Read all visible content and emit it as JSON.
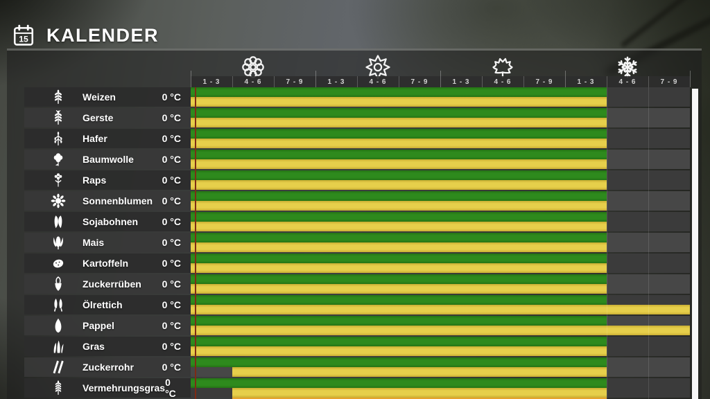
{
  "header": {
    "title": "KALENDER",
    "icon": "calendar-icon",
    "calendar_icon_day": "15"
  },
  "seasons": [
    {
      "icon": "flower-icon"
    },
    {
      "icon": "sun-icon"
    },
    {
      "icon": "maple-leaf-icon"
    },
    {
      "icon": "snowflake-icon"
    }
  ],
  "month_periods": [
    "1 - 3",
    "4 - 6",
    "7 - 9",
    "1 - 3",
    "4 - 6",
    "7 - 9",
    "1 - 3",
    "4 - 6",
    "7 - 9",
    "1 - 3",
    "4 - 6",
    "7 - 9"
  ],
  "crops": [
    {
      "name": "Weizen",
      "temperature": "0 °C",
      "icon": "wheat-icon",
      "green_cells": [
        0,
        10
      ],
      "yellow_cells": [
        0,
        10
      ]
    },
    {
      "name": "Gerste",
      "temperature": "0 °C",
      "icon": "barley-icon",
      "green_cells": [
        0,
        10
      ],
      "yellow_cells": [
        0,
        10
      ]
    },
    {
      "name": "Hafer",
      "temperature": "0 °C",
      "icon": "oat-icon",
      "green_cells": [
        0,
        10
      ],
      "yellow_cells": [
        0,
        10
      ]
    },
    {
      "name": "Baumwolle",
      "temperature": "0 °C",
      "icon": "cotton-icon",
      "green_cells": [
        0,
        10
      ],
      "yellow_cells": [
        0,
        10
      ]
    },
    {
      "name": "Raps",
      "temperature": "0 °C",
      "icon": "canola-icon",
      "green_cells": [
        0,
        10
      ],
      "yellow_cells": [
        0,
        10
      ]
    },
    {
      "name": "Sonnenblumen",
      "temperature": "0 °C",
      "icon": "sunflower-icon",
      "green_cells": [
        0,
        10
      ],
      "yellow_cells": [
        0,
        10
      ]
    },
    {
      "name": "Sojabohnen",
      "temperature": "0 °C",
      "icon": "soybean-icon",
      "green_cells": [
        0,
        10
      ],
      "yellow_cells": [
        0,
        10
      ]
    },
    {
      "name": "Mais",
      "temperature": "0 °C",
      "icon": "corn-icon",
      "green_cells": [
        0,
        10
      ],
      "yellow_cells": [
        0,
        10
      ]
    },
    {
      "name": "Kartoffeln",
      "temperature": "0 °C",
      "icon": "potato-icon",
      "green_cells": [
        0,
        10
      ],
      "yellow_cells": [
        0,
        10
      ]
    },
    {
      "name": "Zuckerrüben",
      "temperature": "0 °C",
      "icon": "sugar-beet-icon",
      "green_cells": [
        0,
        10
      ],
      "yellow_cells": [
        0,
        10
      ]
    },
    {
      "name": "Ölrettich",
      "temperature": "0 °C",
      "icon": "oilseed-radish-icon",
      "green_cells": [
        0,
        10
      ],
      "yellow_cells": [
        0,
        12
      ]
    },
    {
      "name": "Pappel",
      "temperature": "0 °C",
      "icon": "poplar-icon",
      "green_cells": [
        0,
        10
      ],
      "yellow_cells": [
        0,
        12
      ]
    },
    {
      "name": "Gras",
      "temperature": "0 °C",
      "icon": "grass-icon",
      "green_cells": [
        0,
        10
      ],
      "yellow_cells": [
        0,
        10
      ]
    },
    {
      "name": "Zuckerrohr",
      "temperature": "0 °C",
      "icon": "sugarcane-icon",
      "green_cells": [
        0,
        10
      ],
      "yellow_cells": [
        1,
        10
      ]
    },
    {
      "name": "Vermehrungsgras",
      "temperature": "0 °C",
      "icon": "meadow-grass-icon",
      "green_cells": [
        0,
        10
      ],
      "yellow_cells": [
        1,
        10
      ]
    }
  ],
  "partial_next_row": {
    "harvest_cells": [
      1,
      10
    ]
  },
  "day_marker": {
    "cell_position": 0.12
  },
  "colors": {
    "planting_green": "#2E8A1D",
    "planting_green_edge": "#257314",
    "harvest_yellow": "#E6CF4B",
    "harvest_yellow_edge": "#C9AE33",
    "preview_orange": "#E5A32E",
    "day_marker_red": "#7E2B15"
  }
}
